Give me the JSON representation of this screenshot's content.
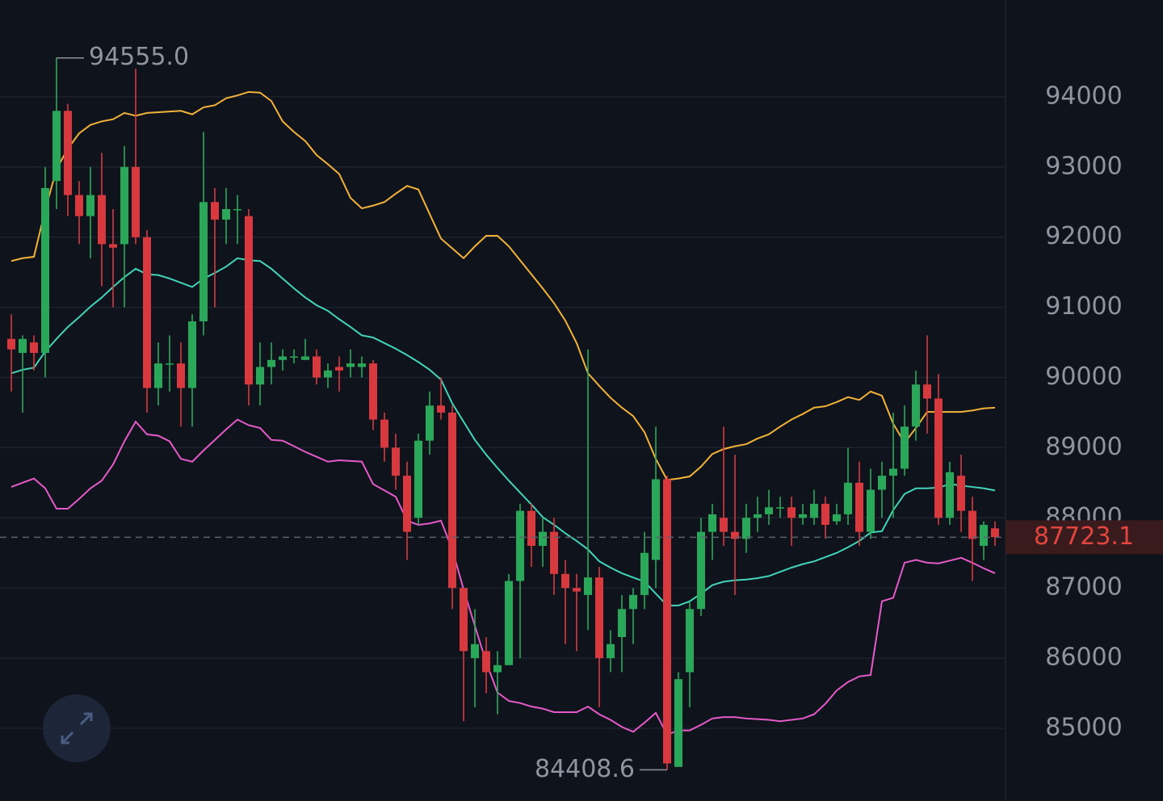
{
  "chart_data": {
    "type": "candlestick",
    "ylim": [
      83964,
      95380
    ],
    "yticks": [
      85000,
      86000,
      87000,
      88000,
      89000,
      90000,
      91000,
      92000,
      93000,
      94000
    ],
    "grid": true,
    "up_color": "#2aa85a",
    "down_color": "#d8393f",
    "open": [
      90550,
      90350,
      90500,
      90350,
      92800,
      93800,
      92600,
      92300,
      92600,
      91900,
      91900,
      93000,
      92000,
      89850,
      90200,
      90200,
      89850,
      90800,
      92500,
      92250,
      92400,
      92300,
      89900,
      90150,
      90250,
      90300,
      90250,
      90300,
      90000,
      90150,
      90150,
      90150,
      90200,
      89400,
      89000,
      88600,
      88000,
      89100,
      89600,
      89500,
      87000,
      86000,
      86100,
      85800,
      85900,
      87100,
      88100,
      87600,
      87800,
      87200,
      87000,
      86900,
      87150,
      86000,
      86300,
      86700,
      86900,
      87400,
      88550,
      84450,
      85800,
      86700,
      87800,
      88000,
      87800,
      87700,
      88000,
      88050,
      88150,
      88150,
      88000,
      88000,
      88200,
      87950,
      88050,
      88500,
      87800,
      88400,
      88600,
      88700,
      89300,
      89900,
      89700,
      88000,
      88600,
      88100,
      87600,
      87850
    ],
    "high": [
      90900,
      90600,
      90600,
      93000,
      94555,
      93900,
      92800,
      93000,
      93200,
      92400,
      93300,
      94400,
      92100,
      90500,
      90600,
      90500,
      90900,
      93500,
      92700,
      92700,
      92600,
      92400,
      90500,
      90500,
      90400,
      90400,
      90550,
      90400,
      90200,
      90300,
      90400,
      90300,
      90250,
      89500,
      89200,
      88800,
      89200,
      89800,
      90000,
      89600,
      87000,
      86700,
      86300,
      86100,
      87200,
      88200,
      88200,
      88000,
      88000,
      87400,
      87200,
      90400,
      87300,
      86400,
      86900,
      87000,
      87800,
      89300,
      88600,
      85800,
      86800,
      88000,
      88200,
      89300,
      88900,
      88200,
      88300,
      88400,
      88300,
      88300,
      88200,
      88400,
      88300,
      88200,
      89000,
      88800,
      88700,
      88800,
      89500,
      89600,
      90100,
      90600,
      90050,
      88800,
      88900,
      88300,
      87950,
      87950
    ],
    "low": [
      89800,
      89500,
      90100,
      90000,
      92400,
      92300,
      91900,
      91700,
      91300,
      91000,
      91000,
      91900,
      89500,
      89600,
      89800,
      89300,
      89300,
      90600,
      91000,
      91900,
      91900,
      89600,
      89600,
      89900,
      90100,
      90200,
      90250,
      89900,
      89850,
      89800,
      90000,
      90000,
      89250,
      88800,
      88400,
      87400,
      87900,
      88900,
      89400,
      86700,
      85100,
      85300,
      85500,
      85200,
      85900,
      86000,
      87300,
      87300,
      86900,
      86200,
      86100,
      86400,
      85300,
      85800,
      85800,
      86200,
      86700,
      87000,
      84408.6,
      84450,
      85300,
      86600,
      87400,
      87600,
      86900,
      87500,
      87800,
      87900,
      88000,
      87600,
      87900,
      87900,
      87700,
      87900,
      87900,
      87600,
      87700,
      88000,
      88000,
      88600,
      89100,
      89200,
      87900,
      87900,
      87800,
      87100,
      87400,
      87600
    ],
    "close": [
      90400,
      90550,
      90350,
      92700,
      93800,
      92600,
      92300,
      92600,
      91900,
      91850,
      93000,
      92000,
      89850,
      90200,
      90200,
      89850,
      90800,
      92500,
      92250,
      92400,
      92400,
      89900,
      90150,
      90250,
      90300,
      90300,
      90300,
      90000,
      90100,
      90100,
      90200,
      90200,
      89400,
      89000,
      88600,
      87800,
      89100,
      89600,
      89500,
      87000,
      86100,
      86200,
      85800,
      85900,
      87100,
      88100,
      87600,
      87800,
      87200,
      87000,
      86950,
      87150,
      86000,
      86200,
      86700,
      86900,
      87500,
      88550,
      84500,
      85700,
      86700,
      87800,
      88050,
      87800,
      87700,
      88000,
      88050,
      88150,
      88150,
      88000,
      88050,
      88200,
      87900,
      88050,
      88500,
      87800,
      88400,
      88600,
      88700,
      89300,
      89900,
      89700,
      88000,
      88650,
      88100,
      87700,
      87900,
      87723.1
    ],
    "series": [
      {
        "color": "#f2b23a",
        "values": [
          91660,
          91700,
          91720,
          92390,
          92970,
          93260,
          93480,
          93600,
          93650,
          93680,
          93770,
          93730,
          93770,
          93780,
          93790,
          93800,
          93750,
          93850,
          93880,
          93980,
          94020,
          94070,
          94060,
          93940,
          93650,
          93500,
          93370,
          93170,
          93040,
          92900,
          92560,
          92410,
          92450,
          92500,
          92620,
          92730,
          92680,
          92330,
          91980,
          91840,
          91700,
          91870,
          92020,
          92020,
          91870,
          91670,
          91470,
          91270,
          91060,
          90810,
          90490,
          90060,
          89880,
          89710,
          89570,
          89450,
          89220,
          88840,
          88540,
          88560,
          88590,
          88730,
          88910,
          88980,
          89020,
          89050,
          89130,
          89190,
          89300,
          89400,
          89480,
          89570,
          89590,
          89650,
          89720,
          89680,
          89800,
          89740,
          89340,
          89070,
          89280,
          89510,
          89510,
          89510,
          89510,
          89530,
          89560,
          89570
        ]
      },
      {
        "color": "#43d3b9",
        "values": [
          90060,
          90110,
          90140,
          90370,
          90550,
          90720,
          90860,
          91010,
          91140,
          91290,
          91430,
          91550,
          91470,
          91460,
          91410,
          91350,
          91290,
          91410,
          91490,
          91580,
          91700,
          91670,
          91660,
          91550,
          91410,
          91270,
          91140,
          91030,
          90950,
          90830,
          90720,
          90600,
          90570,
          90490,
          90410,
          90320,
          90220,
          90110,
          89970,
          89630,
          89370,
          89110,
          88900,
          88710,
          88530,
          88360,
          88190,
          88010,
          87900,
          87780,
          87670,
          87550,
          87380,
          87290,
          87210,
          87150,
          87090,
          86920,
          86750,
          86750,
          86810,
          86920,
          87040,
          87090,
          87110,
          87120,
          87140,
          87170,
          87230,
          87290,
          87340,
          87380,
          87440,
          87500,
          87580,
          87670,
          87790,
          87810,
          88110,
          88340,
          88420,
          88420,
          88430,
          88480,
          88460,
          88440,
          88420,
          88390
        ]
      },
      {
        "color": "#e45ac8",
        "values": [
          88440,
          88500,
          88560,
          88420,
          88130,
          88130,
          88270,
          88420,
          88530,
          88760,
          89090,
          89370,
          89190,
          89170,
          89090,
          88840,
          88800,
          88960,
          89110,
          89260,
          89400,
          89320,
          89280,
          89110,
          89100,
          89020,
          88940,
          88870,
          88800,
          88820,
          88810,
          88800,
          88480,
          88390,
          88300,
          87960,
          87900,
          87920,
          87960,
          87550,
          86980,
          86460,
          85940,
          85510,
          85390,
          85360,
          85310,
          85280,
          85230,
          85230,
          85230,
          85310,
          85200,
          85120,
          85020,
          84950,
          85080,
          85220,
          84910,
          84970,
          84970,
          85050,
          85140,
          85160,
          85160,
          85140,
          85130,
          85120,
          85100,
          85120,
          85140,
          85200,
          85350,
          85540,
          85660,
          85740,
          85760,
          86810,
          86860,
          87360,
          87400,
          87360,
          87350,
          87390,
          87430,
          87360,
          87280,
          87210
        ]
      }
    ],
    "annotations": [
      {
        "value": 94555,
        "label": "94555.0"
      },
      {
        "value": 84408.6,
        "label": "84408.6"
      }
    ],
    "last_price": 87723.1
  }
}
